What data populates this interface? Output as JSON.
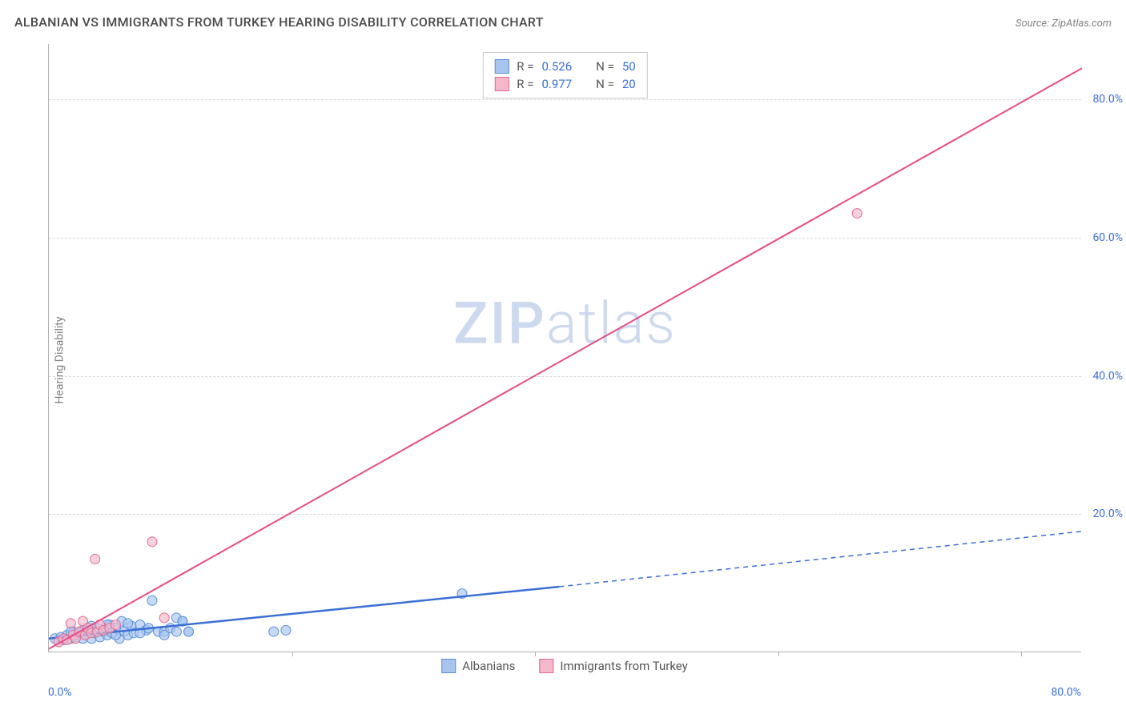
{
  "header": {
    "title": "ALBANIAN VS IMMIGRANTS FROM TURKEY HEARING DISABILITY CORRELATION CHART",
    "source": "Source: ZipAtlas.com"
  },
  "chart": {
    "type": "scatter",
    "y_axis_label": "Hearing Disability",
    "x_min_label": "0.0%",
    "x_max_label": "80.0%",
    "xlim": [
      0,
      85
    ],
    "ylim": [
      0,
      88
    ],
    "y_ticks": [
      {
        "value": 20,
        "label": "20.0%"
      },
      {
        "value": 40,
        "label": "40.0%"
      },
      {
        "value": 60,
        "label": "60.0%"
      },
      {
        "value": 80,
        "label": "80.0%"
      }
    ],
    "x_tick_positions": [
      20,
      40,
      60,
      80
    ],
    "background_color": "#ffffff",
    "grid_color": "#d8d8d8",
    "axis_color": "#b0b0b0",
    "watermark": "ZIPatlas",
    "watermark_color": "#cdd9ee",
    "series": [
      {
        "id": "albanians",
        "label": "Albanians",
        "fill_color": "#a8c5f0",
        "stroke_color": "#5a8fd8",
        "line_color": "#3b6fd6",
        "line_width": 2.5,
        "marker_radius": 6,
        "marker_opacity": 0.65,
        "r": "0.526",
        "n": "50",
        "trend": {
          "solid": {
            "x1": 0,
            "y1": 2.0,
            "x2": 42,
            "y2": 9.5
          },
          "dashed": {
            "x1": 42,
            "y1": 9.5,
            "x2": 85,
            "y2": 17.5
          }
        },
        "points": [
          [
            0.5,
            2.0
          ],
          [
            1.0,
            2.2
          ],
          [
            1.2,
            1.8
          ],
          [
            1.5,
            2.5
          ],
          [
            1.8,
            2.0
          ],
          [
            2.0,
            3.0
          ],
          [
            2.2,
            2.2
          ],
          [
            2.5,
            2.8
          ],
          [
            2.8,
            2.0
          ],
          [
            3.0,
            2.5
          ],
          [
            3.2,
            3.2
          ],
          [
            3.5,
            2.0
          ],
          [
            3.8,
            2.8
          ],
          [
            4.0,
            3.5
          ],
          [
            4.2,
            2.2
          ],
          [
            4.5,
            3.0
          ],
          [
            4.8,
            2.5
          ],
          [
            5.0,
            4.0
          ],
          [
            5.2,
            2.8
          ],
          [
            5.5,
            3.5
          ],
          [
            5.8,
            2.0
          ],
          [
            6.0,
            4.5
          ],
          [
            6.2,
            3.0
          ],
          [
            6.5,
            2.5
          ],
          [
            6.8,
            3.8
          ],
          [
            7.0,
            2.8
          ],
          [
            7.5,
            4.0
          ],
          [
            8.0,
            3.2
          ],
          [
            8.5,
            7.5
          ],
          [
            9.0,
            3.0
          ],
          [
            9.5,
            3.0
          ],
          [
            10.0,
            3.5
          ],
          [
            10.5,
            3.0
          ],
          [
            11.0,
            4.5
          ],
          [
            11.5,
            3.0
          ],
          [
            7.5,
            2.8
          ],
          [
            8.2,
            3.5
          ],
          [
            6.5,
            4.2
          ],
          [
            5.5,
            2.5
          ],
          [
            4.8,
            4.0
          ],
          [
            3.5,
            3.8
          ],
          [
            2.8,
            3.2
          ],
          [
            1.8,
            3.0
          ],
          [
            9.5,
            2.5
          ],
          [
            10.5,
            5.0
          ],
          [
            11.0,
            4.5
          ],
          [
            18.5,
            3.0
          ],
          [
            19.5,
            3.2
          ],
          [
            34.0,
            8.5
          ],
          [
            11.5,
            3.0
          ]
        ]
      },
      {
        "id": "turkey",
        "label": "Immigrants from Turkey",
        "fill_color": "#f5b8cb",
        "stroke_color": "#e06a91",
        "line_color": "#e84b85",
        "line_width": 2,
        "marker_radius": 6,
        "marker_opacity": 0.65,
        "r": "0.977",
        "n": "20",
        "trend": {
          "solid": {
            "x1": 0,
            "y1": 0.5,
            "x2": 85,
            "y2": 84.5
          }
        },
        "points": [
          [
            0.8,
            1.5
          ],
          [
            1.2,
            2.0
          ],
          [
            1.5,
            1.8
          ],
          [
            1.8,
            4.2
          ],
          [
            2.0,
            2.5
          ],
          [
            2.2,
            2.0
          ],
          [
            2.5,
            3.0
          ],
          [
            2.8,
            4.5
          ],
          [
            3.0,
            2.5
          ],
          [
            3.2,
            3.5
          ],
          [
            3.5,
            2.8
          ],
          [
            4.0,
            3.0
          ],
          [
            4.2,
            4.0
          ],
          [
            4.5,
            3.2
          ],
          [
            5.0,
            3.5
          ],
          [
            5.5,
            4.0
          ],
          [
            3.8,
            13.5
          ],
          [
            8.5,
            16.0
          ],
          [
            9.5,
            5.0
          ],
          [
            66.5,
            63.5
          ]
        ]
      }
    ],
    "legend_top": {
      "rows": [
        {
          "series": "albanians",
          "r_label": "R =",
          "n_label": "N ="
        },
        {
          "series": "turkey",
          "r_label": "R =",
          "n_label": "N ="
        }
      ]
    }
  }
}
